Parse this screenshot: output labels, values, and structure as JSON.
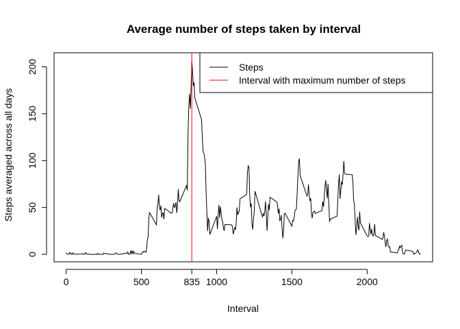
{
  "chart_data": {
    "type": "line",
    "title": "Average number of steps taken by interval",
    "xlabel": "Interval",
    "ylabel": "Steps averaged across all days",
    "xlim": [
      -80,
      2435
    ],
    "ylim": [
      -8,
      215
    ],
    "xticks": [
      0,
      500,
      835,
      1000,
      1500,
      2000
    ],
    "yticks": [
      0,
      50,
      100,
      150,
      200
    ],
    "grid": false,
    "legend": {
      "placement": "top-right",
      "entries": [
        {
          "label": "Steps",
          "color": "#000000"
        },
        {
          "label": "Interval with maximum number of steps",
          "color": "#ff0000"
        }
      ]
    },
    "series": [
      {
        "name": "Steps",
        "color": "#000000",
        "points": [
          [
            0,
            1.7
          ],
          [
            5,
            0.3
          ],
          [
            10,
            0.1
          ],
          [
            15,
            0.2
          ],
          [
            20,
            0.1
          ],
          [
            25,
            2.1
          ],
          [
            30,
            0.5
          ],
          [
            35,
            0.9
          ],
          [
            40,
            0
          ],
          [
            45,
            1.5
          ],
          [
            50,
            0.3
          ],
          [
            55,
            0.1
          ],
          [
            100,
            0.3
          ],
          [
            105,
            0.7
          ],
          [
            110,
            0.2
          ],
          [
            115,
            0.3
          ],
          [
            120,
            0
          ],
          [
            125,
            1.1
          ],
          [
            130,
            1.8
          ],
          [
            135,
            0.2
          ],
          [
            140,
            0.2
          ],
          [
            145,
            0.4
          ],
          [
            150,
            0.3
          ],
          [
            155,
            0
          ],
          [
            200,
            0
          ],
          [
            205,
            0
          ],
          [
            210,
            1.1
          ],
          [
            215,
            0
          ],
          [
            220,
            0
          ],
          [
            225,
            0.1
          ],
          [
            230,
            0
          ],
          [
            235,
            0.2
          ],
          [
            240,
            0
          ],
          [
            245,
            0
          ],
          [
            250,
            1.5
          ],
          [
            255,
            0.9
          ],
          [
            300,
            0
          ],
          [
            305,
            0
          ],
          [
            310,
            0
          ],
          [
            315,
            0
          ],
          [
            320,
            0.2
          ],
          [
            325,
            0.6
          ],
          [
            330,
            1.6
          ],
          [
            335,
            0.6
          ],
          [
            340,
            0.5
          ],
          [
            345,
            0.1
          ],
          [
            350,
            0
          ],
          [
            355,
            0
          ],
          [
            400,
            1.2
          ],
          [
            405,
            0.9
          ],
          [
            410,
            2.6
          ],
          [
            415,
            0
          ],
          [
            420,
            0.3
          ],
          [
            425,
            0.4
          ],
          [
            430,
            4.1
          ],
          [
            435,
            0.7
          ],
          [
            440,
            3.5
          ],
          [
            445,
            0.8
          ],
          [
            450,
            3.1
          ],
          [
            455,
            1.1
          ],
          [
            500,
            0
          ],
          [
            505,
            1.6
          ],
          [
            510,
            3
          ],
          [
            515,
            2.2
          ],
          [
            520,
            3.3
          ],
          [
            525,
            3
          ],
          [
            530,
            2.1
          ],
          [
            535,
            6.1
          ],
          [
            540,
            16
          ],
          [
            545,
            18.3
          ],
          [
            550,
            39.5
          ],
          [
            555,
            44.5
          ],
          [
            600,
            31.5
          ],
          [
            605,
            49.3
          ],
          [
            610,
            53.8
          ],
          [
            615,
            63.5
          ],
          [
            620,
            50
          ],
          [
            625,
            47.1
          ],
          [
            630,
            52.2
          ],
          [
            635,
            39.3
          ],
          [
            640,
            44
          ],
          [
            645,
            44.2
          ],
          [
            650,
            37.4
          ],
          [
            655,
            49
          ],
          [
            700,
            43.8
          ],
          [
            705,
            44.4
          ],
          [
            710,
            50.5
          ],
          [
            715,
            54.5
          ],
          [
            720,
            49.9
          ],
          [
            725,
            50.98
          ],
          [
            730,
            55.7
          ],
          [
            735,
            44.3
          ],
          [
            740,
            52.3
          ],
          [
            745,
            69.5
          ],
          [
            750,
            57.8
          ],
          [
            755,
            56.2
          ],
          [
            800,
            73.4
          ],
          [
            805,
            68.2
          ],
          [
            810,
            129.4
          ],
          [
            815,
            157.5
          ],
          [
            820,
            171.2
          ],
          [
            825,
            155.4
          ],
          [
            830,
            177.3
          ],
          [
            835,
            206.2
          ],
          [
            840,
            195.9
          ],
          [
            845,
            179.6
          ],
          [
            850,
            183.4
          ],
          [
            855,
            167
          ],
          [
            900,
            143.5
          ],
          [
            905,
            124
          ],
          [
            910,
            109.1
          ],
          [
            915,
            108.1
          ],
          [
            920,
            103.7
          ],
          [
            925,
            95.9
          ],
          [
            930,
            66.2
          ],
          [
            935,
            45.2
          ],
          [
            940,
            24.8
          ],
          [
            945,
            38.8
          ],
          [
            950,
            34.98
          ],
          [
            955,
            21.1
          ],
          [
            1000,
            40.6
          ],
          [
            1005,
            26.98
          ],
          [
            1010,
            42.4
          ],
          [
            1015,
            52.7
          ],
          [
            1020,
            38.9
          ],
          [
            1025,
            50.8
          ],
          [
            1030,
            44.3
          ],
          [
            1035,
            37.4
          ],
          [
            1040,
            34.7
          ],
          [
            1045,
            28.3
          ],
          [
            1050,
            25.1
          ],
          [
            1055,
            31.9
          ],
          [
            1100,
            31.4
          ],
          [
            1105,
            29.7
          ],
          [
            1110,
            21.3
          ],
          [
            1115,
            25.5
          ],
          [
            1120,
            28.4
          ],
          [
            1125,
            26.5
          ],
          [
            1130,
            33.4
          ],
          [
            1135,
            49.98
          ],
          [
            1140,
            42
          ],
          [
            1145,
            44.6
          ],
          [
            1150,
            46
          ],
          [
            1155,
            59.2
          ],
          [
            1200,
            63.9
          ],
          [
            1205,
            87.7
          ],
          [
            1210,
            94.8
          ],
          [
            1215,
            92.8
          ],
          [
            1220,
            63.4
          ],
          [
            1225,
            50.2
          ],
          [
            1230,
            54.5
          ],
          [
            1235,
            32.4
          ],
          [
            1240,
            26.5
          ],
          [
            1245,
            37.7
          ],
          [
            1250,
            45.1
          ],
          [
            1255,
            67.3
          ],
          [
            1300,
            42.3
          ],
          [
            1305,
            39.9
          ],
          [
            1310,
            43.3
          ],
          [
            1315,
            40.98
          ],
          [
            1320,
            46.2
          ],
          [
            1325,
            56.4
          ],
          [
            1330,
            42.8
          ],
          [
            1335,
            25.1
          ],
          [
            1340,
            39.97
          ],
          [
            1345,
            53.5
          ],
          [
            1350,
            47.3
          ],
          [
            1355,
            60.8
          ],
          [
            1400,
            55.8
          ],
          [
            1405,
            51.96
          ],
          [
            1410,
            43.6
          ],
          [
            1415,
            48.7
          ],
          [
            1420,
            35.5
          ],
          [
            1425,
            37.5
          ],
          [
            1430,
            41.8
          ],
          [
            1435,
            27.5
          ],
          [
            1440,
            17.1
          ],
          [
            1445,
            26.1
          ],
          [
            1450,
            43.6
          ],
          [
            1455,
            43.8
          ],
          [
            1500,
            30
          ],
          [
            1505,
            36.1
          ],
          [
            1510,
            35.5
          ],
          [
            1515,
            38.8
          ],
          [
            1520,
            45.96
          ],
          [
            1525,
            47.8
          ],
          [
            1530,
            48.1
          ],
          [
            1535,
            65.3
          ],
          [
            1540,
            82.9
          ],
          [
            1545,
            98.7
          ],
          [
            1550,
            102.1
          ],
          [
            1555,
            83.96
          ],
          [
            1600,
            62.1
          ],
          [
            1605,
            64.1
          ],
          [
            1610,
            74.5
          ],
          [
            1615,
            63.2
          ],
          [
            1620,
            56.9
          ],
          [
            1625,
            59.8
          ],
          [
            1630,
            43.9
          ],
          [
            1635,
            38.6
          ],
          [
            1640,
            44.7
          ],
          [
            1645,
            45.5
          ],
          [
            1650,
            46.2
          ],
          [
            1655,
            43.7
          ],
          [
            1700,
            46.6
          ],
          [
            1705,
            56.3
          ],
          [
            1710,
            50.7
          ],
          [
            1715,
            61.2
          ],
          [
            1720,
            72.7
          ],
          [
            1725,
            78.9
          ],
          [
            1730,
            68.9
          ],
          [
            1735,
            59.7
          ],
          [
            1740,
            75.1
          ],
          [
            1745,
            56.5
          ],
          [
            1750,
            34.8
          ],
          [
            1755,
            37.5
          ],
          [
            1800,
            40.7
          ],
          [
            1805,
            58
          ],
          [
            1810,
            74.7
          ],
          [
            1815,
            85.3
          ],
          [
            1820,
            59.3
          ],
          [
            1825,
            67.8
          ],
          [
            1830,
            77.7
          ],
          [
            1835,
            74.2
          ],
          [
            1840,
            85.3
          ],
          [
            1845,
            99.5
          ],
          [
            1850,
            86.6
          ],
          [
            1855,
            85.6
          ],
          [
            1900,
            84.9
          ],
          [
            1905,
            77.8
          ],
          [
            1910,
            58.04
          ],
          [
            1915,
            53.4
          ],
          [
            1920,
            36.3
          ],
          [
            1925,
            20.7
          ],
          [
            1930,
            27.4
          ],
          [
            1935,
            40
          ],
          [
            1940,
            30.2
          ],
          [
            1945,
            25.5
          ],
          [
            1950,
            45.7
          ],
          [
            1955,
            33.5
          ],
          [
            2000,
            19.6
          ],
          [
            2005,
            19
          ],
          [
            2010,
            19.3
          ],
          [
            2015,
            33.3
          ],
          [
            2020,
            26.8
          ],
          [
            2025,
            21.2
          ],
          [
            2030,
            27.3
          ],
          [
            2035,
            21.3
          ],
          [
            2040,
            19.5
          ],
          [
            2045,
            21.3
          ],
          [
            2050,
            32.3
          ],
          [
            2055,
            20.2
          ],
          [
            2100,
            15.9
          ],
          [
            2105,
            17.2
          ],
          [
            2110,
            23.5
          ],
          [
            2115,
            19.2
          ],
          [
            2120,
            12.5
          ],
          [
            2125,
            8.0
          ],
          [
            2130,
            14.7
          ],
          [
            2135,
            16.3
          ],
          [
            2140,
            8.7
          ],
          [
            2145,
            7.8
          ],
          [
            2150,
            8.1
          ],
          [
            2155,
            2.6
          ],
          [
            2200,
            1.5
          ],
          [
            2205,
            3.7
          ],
          [
            2210,
            4.8
          ],
          [
            2215,
            8.5
          ],
          [
            2220,
            7.1
          ],
          [
            2225,
            8.7
          ],
          [
            2230,
            9.8
          ],
          [
            2235,
            2.2
          ],
          [
            2240,
            0.3
          ],
          [
            2245,
            0.1
          ],
          [
            2250,
            1.6
          ],
          [
            2255,
            4.6
          ],
          [
            2300,
            3.3
          ],
          [
            2305,
            2.8
          ],
          [
            2310,
            0
          ],
          [
            2315,
            0.8
          ],
          [
            2320,
            0.96
          ],
          [
            2325,
            1.6
          ],
          [
            2330,
            2.6
          ],
          [
            2335,
            4.7
          ],
          [
            2340,
            3.3
          ],
          [
            2345,
            0.6
          ],
          [
            2350,
            0.2
          ],
          [
            2355,
            1.1
          ]
        ]
      }
    ],
    "vline": {
      "x": 835,
      "color": "#ff0000",
      "legend_label": "Interval with maximum number of steps"
    }
  }
}
